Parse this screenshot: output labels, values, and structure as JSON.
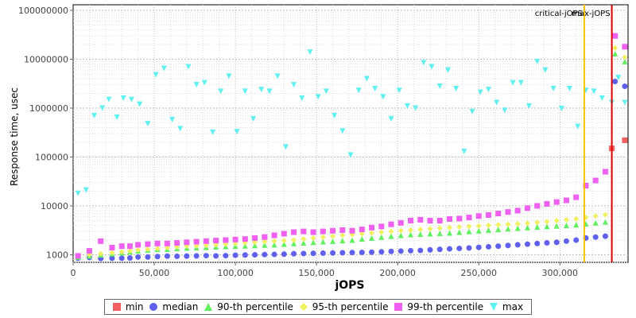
{
  "chart_data": {
    "type": "scatter",
    "xlabel": "jOPS",
    "ylabel": "Response time, usec",
    "xlim": [
      0,
      342000
    ],
    "ylim": [
      700,
      130000000
    ],
    "log_y": true,
    "x_ticks": [
      "0",
      "50,000",
      "100,000",
      "150,000",
      "200,000",
      "250,000",
      "300,000"
    ],
    "y_ticks": [
      "1000",
      "10000",
      "100000",
      "1000000",
      "10000000",
      "100000000"
    ],
    "grid": true,
    "legend_position": "bottom",
    "reference_lines": [
      {
        "label": "critical-jOPS",
        "x": 315000,
        "color": "#ffc200"
      },
      {
        "label": "max-jOPS",
        "x": 332000,
        "color": "#dd0000"
      }
    ],
    "series": [
      {
        "name": "min",
        "color": "#f06060",
        "marker": "square",
        "x": [
          332000,
          340000
        ],
        "y": [
          150000,
          220000
        ]
      },
      {
        "name": "median",
        "color": "#6060f0",
        "marker": "circle",
        "x": [
          3000,
          10000,
          17000,
          24000,
          30000,
          35000,
          40000,
          46000,
          52000,
          58000,
          64000,
          70000,
          76000,
          82000,
          88000,
          94000,
          100000,
          106000,
          112000,
          118000,
          124000,
          130000,
          136000,
          142000,
          148000,
          154000,
          160000,
          166000,
          172000,
          178000,
          184000,
          190000,
          196000,
          202000,
          208000,
          214000,
          220000,
          226000,
          232000,
          238000,
          244000,
          250000,
          256000,
          262000,
          268000,
          274000,
          280000,
          286000,
          292000,
          298000,
          304000,
          310000,
          316000,
          322000,
          328000,
          334000,
          340000
        ],
        "y": [
          850,
          880,
          840,
          850,
          850,
          860,
          900,
          900,
          920,
          940,
          930,
          940,
          950,
          960,
          950,
          960,
          980,
          990,
          1000,
          1010,
          1020,
          1030,
          1050,
          1060,
          1070,
          1080,
          1090,
          1100,
          1110,
          1120,
          1130,
          1150,
          1170,
          1190,
          1210,
          1230,
          1260,
          1290,
          1320,
          1350,
          1380,
          1420,
          1460,
          1500,
          1550,
          1600,
          1650,
          1700,
          1750,
          1800,
          1900,
          2000,
          2200,
          2300,
          2400,
          3500000,
          2800000
        ]
      },
      {
        "name": "90-th percentile",
        "color": "#60f060",
        "marker": "triangle-up",
        "x": [
          3000,
          10000,
          17000,
          24000,
          30000,
          35000,
          40000,
          46000,
          52000,
          58000,
          64000,
          70000,
          76000,
          82000,
          88000,
          94000,
          100000,
          106000,
          112000,
          118000,
          124000,
          130000,
          136000,
          142000,
          148000,
          154000,
          160000,
          166000,
          172000,
          178000,
          184000,
          190000,
          196000,
          202000,
          208000,
          214000,
          220000,
          226000,
          232000,
          238000,
          244000,
          250000,
          256000,
          262000,
          268000,
          274000,
          280000,
          286000,
          292000,
          298000,
          304000,
          310000,
          316000,
          322000,
          328000,
          334000,
          340000
        ],
        "y": [
          900,
          950,
          1000,
          1050,
          1100,
          1150,
          1200,
          1250,
          1300,
          1300,
          1350,
          1380,
          1400,
          1420,
          1450,
          1480,
          1500,
          1520,
          1550,
          1580,
          1600,
          1650,
          1700,
          1750,
          1800,
          1850,
          1900,
          1950,
          2000,
          2100,
          2200,
          2300,
          2400,
          2500,
          2600,
          2650,
          2700,
          2750,
          2800,
          2900,
          3000,
          3100,
          3200,
          3300,
          3400,
          3500,
          3600,
          3700,
          3800,
          3900,
          4000,
          4100,
          4300,
          4500,
          4700,
          13000000,
          9000000
        ]
      },
      {
        "name": "95-th percentile",
        "color": "#f0f060",
        "marker": "diamond",
        "x": [
          3000,
          10000,
          17000,
          24000,
          30000,
          35000,
          40000,
          46000,
          52000,
          58000,
          64000,
          70000,
          76000,
          82000,
          88000,
          94000,
          100000,
          106000,
          112000,
          118000,
          124000,
          130000,
          136000,
          142000,
          148000,
          154000,
          160000,
          166000,
          172000,
          178000,
          184000,
          190000,
          196000,
          202000,
          208000,
          214000,
          220000,
          226000,
          232000,
          238000,
          244000,
          250000,
          256000,
          262000,
          268000,
          274000,
          280000,
          286000,
          292000,
          298000,
          304000,
          310000,
          316000,
          322000,
          328000,
          334000,
          340000
        ],
        "y": [
          950,
          1000,
          1050,
          1100,
          1150,
          1200,
          1250,
          1300,
          1350,
          1400,
          1450,
          1500,
          1520,
          1550,
          1600,
          1650,
          1700,
          1750,
          1800,
          1850,
          1900,
          1950,
          2000,
          2100,
          2200,
          2300,
          2400,
          2500,
          2600,
          2700,
          2800,
          2900,
          3000,
          3100,
          3200,
          3300,
          3400,
          3500,
          3600,
          3700,
          3800,
          3900,
          4000,
          4100,
          4200,
          4300,
          4400,
          4600,
          4800,
          5000,
          5200,
          5400,
          5800,
          6200,
          6600,
          17000000,
          11000000
        ]
      },
      {
        "name": "99-th percentile",
        "color": "#f060f0",
        "marker": "square",
        "x": [
          3000,
          10000,
          17000,
          24000,
          30000,
          35000,
          40000,
          46000,
          52000,
          58000,
          64000,
          70000,
          76000,
          82000,
          88000,
          94000,
          100000,
          106000,
          112000,
          118000,
          124000,
          130000,
          136000,
          142000,
          148000,
          154000,
          160000,
          166000,
          172000,
          178000,
          184000,
          190000,
          196000,
          202000,
          208000,
          214000,
          220000,
          226000,
          232000,
          238000,
          244000,
          250000,
          256000,
          262000,
          268000,
          274000,
          280000,
          286000,
          292000,
          298000,
          304000,
          310000,
          316000,
          322000,
          328000,
          334000,
          340000
        ],
        "y": [
          950,
          1200,
          1900,
          1400,
          1500,
          1500,
          1600,
          1650,
          1700,
          1700,
          1750,
          1800,
          1850,
          1900,
          1950,
          2000,
          2050,
          2100,
          2200,
          2300,
          2500,
          2700,
          2900,
          3000,
          2900,
          3000,
          3100,
          3200,
          3100,
          3300,
          3600,
          3800,
          4200,
          4500,
          5000,
          5200,
          5000,
          5000,
          5400,
          5500,
          5800,
          6200,
          6500,
          7000,
          7500,
          8000,
          9000,
          10000,
          11000,
          12000,
          13000,
          15000,
          26000,
          33000,
          50000,
          30000000,
          18000000
        ]
      },
      {
        "name": "max",
        "color": "#60f0f0",
        "marker": "triangle-down",
        "x": [
          3000,
          8000,
          13000,
          18000,
          22000,
          27000,
          31000,
          36000,
          41000,
          46000,
          51000,
          56000,
          61000,
          66000,
          71000,
          76000,
          81000,
          86000,
          91000,
          96000,
          101000,
          106000,
          111000,
          116000,
          121000,
          126000,
          131000,
          136000,
          141000,
          146000,
          151000,
          156000,
          161000,
          166000,
          171000,
          176000,
          181000,
          186000,
          191000,
          196000,
          201000,
          206000,
          211000,
          216000,
          221000,
          226000,
          231000,
          236000,
          241000,
          246000,
          251000,
          256000,
          261000,
          266000,
          271000,
          276000,
          281000,
          286000,
          291000,
          296000,
          301000,
          306000,
          311000,
          316000,
          321000,
          326000,
          332000,
          336000,
          340000
        ],
        "y": [
          18000,
          21000,
          700000,
          1000000,
          1500000,
          650000,
          1600000,
          1500000,
          1200000,
          480000,
          4800000,
          6500000,
          580000,
          380000,
          7000000,
          3000000,
          3300000,
          320000,
          2200000,
          4500000,
          330000,
          2200000,
          600000,
          2400000,
          2200000,
          4500000,
          160000,
          3000000,
          1600000,
          14000000,
          1700000,
          2200000,
          700000,
          340000,
          110000,
          2300000,
          4000000,
          2500000,
          1700000,
          600000,
          2300000,
          1100000,
          1000000,
          8500000,
          7000000,
          2800000,
          6000000,
          2500000,
          130000,
          850000,
          2100000,
          2400000,
          1300000,
          900000,
          3300000,
          3300000,
          1100000,
          9000000,
          6000000,
          2500000,
          980000,
          2500000,
          420000,
          2300000,
          2200000,
          1600000,
          1300000,
          4200000,
          1300000
        ]
      }
    ]
  },
  "legend": {
    "items": [
      {
        "label": "min",
        "color": "#f06060",
        "marker": "square"
      },
      {
        "label": "median",
        "color": "#6060f0",
        "marker": "circle"
      },
      {
        "label": "90-th percentile",
        "color": "#60f060",
        "marker": "triangle-up"
      },
      {
        "label": "95-th percentile",
        "color": "#f0f060",
        "marker": "diamond"
      },
      {
        "label": "99-th percentile",
        "color": "#f060f0",
        "marker": "square"
      },
      {
        "label": "max",
        "color": "#60f0f0",
        "marker": "triangle-down"
      }
    ]
  }
}
